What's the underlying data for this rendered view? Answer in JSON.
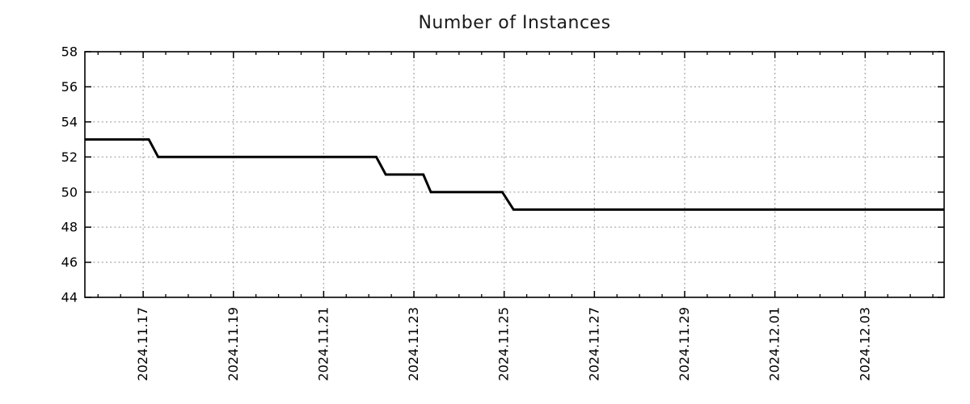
{
  "header": {
    "title": "Number of Instances"
  },
  "chart_data": {
    "type": "line",
    "title": "Number of Instances",
    "xlabel": "",
    "ylabel": "",
    "grid": true,
    "legend": "none",
    "line_style": "step-like solid line",
    "ylim": [
      44,
      58
    ],
    "y_ticks": [
      44,
      46,
      48,
      50,
      52,
      54,
      56,
      58
    ],
    "xlim": [
      "2024-11-15T17:00",
      "2024-12-04T18:00"
    ],
    "x_ticks": [
      {
        "label": "2024.11.17",
        "date": "2024-11-17T00:00"
      },
      {
        "label": "2024.11.19",
        "date": "2024-11-19T00:00"
      },
      {
        "label": "2024.11.21",
        "date": "2024-11-21T00:00"
      },
      {
        "label": "2024.11.23",
        "date": "2024-11-23T00:00"
      },
      {
        "label": "2024.11.25",
        "date": "2024-11-25T00:00"
      },
      {
        "label": "2024.11.27",
        "date": "2024-11-27T00:00"
      },
      {
        "label": "2024.11.29",
        "date": "2024-11-29T00:00"
      },
      {
        "label": "2024.12.01",
        "date": "2024-12-01T00:00"
      },
      {
        "label": "2024.12.03",
        "date": "2024-12-03T00:00"
      }
    ],
    "minor_tick_hours": 12,
    "series": [
      {
        "name": "instances",
        "color": "#000000",
        "points": [
          {
            "x": "2024-11-15T17:00",
            "y": 53
          },
          {
            "x": "2024-11-17T03:00",
            "y": 53
          },
          {
            "x": "2024-11-17T08:00",
            "y": 52
          },
          {
            "x": "2024-11-22T04:00",
            "y": 52
          },
          {
            "x": "2024-11-22T09:00",
            "y": 51
          },
          {
            "x": "2024-11-23T05:00",
            "y": 51
          },
          {
            "x": "2024-11-23T09:00",
            "y": 50
          },
          {
            "x": "2024-11-24T23:00",
            "y": 50
          },
          {
            "x": "2024-11-25T05:00",
            "y": 49
          },
          {
            "x": "2024-12-04T18:00",
            "y": 49
          }
        ]
      }
    ],
    "colors": {
      "line": "#000000",
      "border": "#000000",
      "grid": "#a9a9a9",
      "tick_text": "#000000",
      "title_text": "#1a1a1a",
      "background": "#ffffff"
    }
  }
}
